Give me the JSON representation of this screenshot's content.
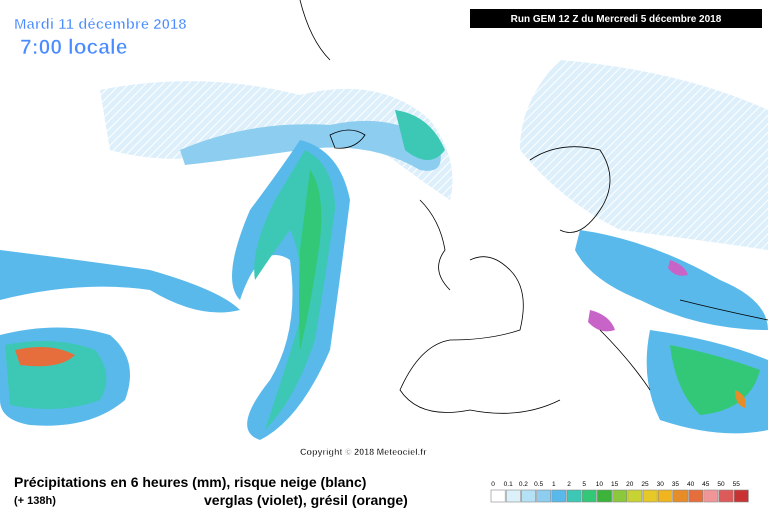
{
  "header": {
    "date": "Mardi 11 décembre 2018",
    "time": "7:00 locale",
    "run": "Run GEM 12 Z du Mercredi 5 décembre 2018"
  },
  "copyright": "Copyright © 2018 Meteociel.fr",
  "footer": {
    "line1": "Précipitations en 6 heures (mm), risque neige (blanc)",
    "lead": "(+ 138h)",
    "line2": "verglas (violet), grésil (orange)"
  },
  "legend": {
    "steps": [
      {
        "value": 0,
        "color": "#ffffff"
      },
      {
        "value": 0.1,
        "color": "#dcf0fa"
      },
      {
        "value": 0.2,
        "color": "#b4e1f5"
      },
      {
        "value": 0.5,
        "color": "#8ccdf0"
      },
      {
        "value": 1,
        "color": "#5ab9eb"
      },
      {
        "value": 2,
        "color": "#3cc8b4"
      },
      {
        "value": 5,
        "color": "#32c878"
      },
      {
        "value": 10,
        "color": "#3cb43c"
      },
      {
        "value": 15,
        "color": "#8cc83c"
      },
      {
        "value": 20,
        "color": "#c8d232"
      },
      {
        "value": 25,
        "color": "#e6c828"
      },
      {
        "value": 30,
        "color": "#f0b41e"
      },
      {
        "value": 35,
        "color": "#e68c28"
      },
      {
        "value": 40,
        "color": "#e66e3c"
      },
      {
        "value": 45,
        "color": "#f09696"
      },
      {
        "value": 50,
        "color": "#dc5a5a"
      },
      {
        "value": 55,
        "color": "#c83232"
      }
    ]
  }
}
